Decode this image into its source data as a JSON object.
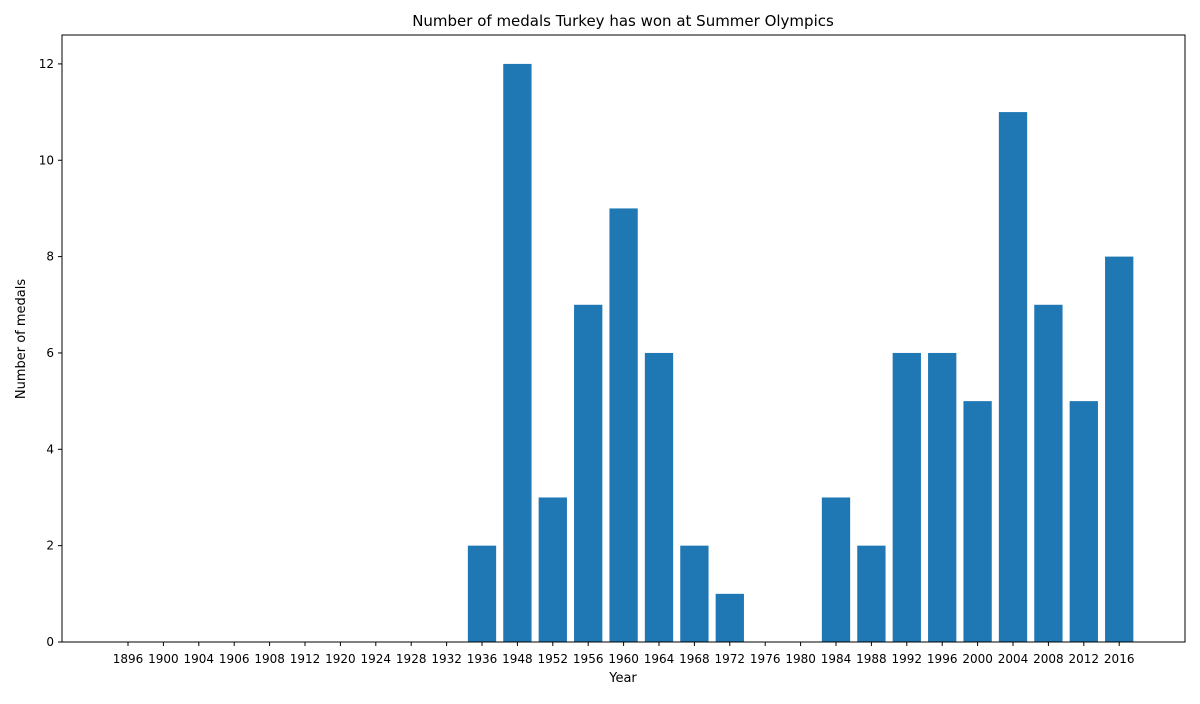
{
  "chart_data": {
    "type": "bar",
    "title": "Number of medals Turkey has won at Summer Olympics",
    "xlabel": "Year",
    "ylabel": "Number of medals",
    "categories": [
      "1896",
      "1900",
      "1904",
      "1906",
      "1908",
      "1912",
      "1920",
      "1924",
      "1928",
      "1932",
      "1936",
      "1948",
      "1952",
      "1956",
      "1960",
      "1964",
      "1968",
      "1972",
      "1976",
      "1980",
      "1984",
      "1988",
      "1992",
      "1996",
      "2000",
      "2004",
      "2008",
      "2012",
      "2016"
    ],
    "values": [
      0,
      0,
      0,
      0,
      0,
      0,
      0,
      0,
      0,
      0,
      2,
      12,
      3,
      7,
      9,
      6,
      2,
      1,
      0,
      0,
      3,
      2,
      6,
      6,
      5,
      11,
      7,
      5,
      8
    ],
    "ylim": [
      0,
      12.6
    ],
    "yticks": [
      0,
      2,
      4,
      6,
      8,
      10,
      12
    ],
    "grid": false,
    "bar_color": "#1f77b4"
  }
}
